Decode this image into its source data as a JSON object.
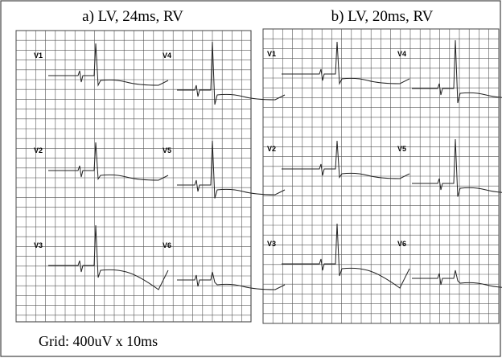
{
  "panels": [
    {
      "title": "a) LV, 24ms, RV",
      "leads": [
        "V1",
        "V2",
        "V3",
        "V4",
        "V5",
        "V6"
      ]
    },
    {
      "title": "b) LV, 20ms, RV",
      "leads": [
        "V1",
        "V2",
        "V3",
        "V4",
        "V5",
        "V6"
      ]
    }
  ],
  "caption": "Grid: 400uV x 10ms"
}
